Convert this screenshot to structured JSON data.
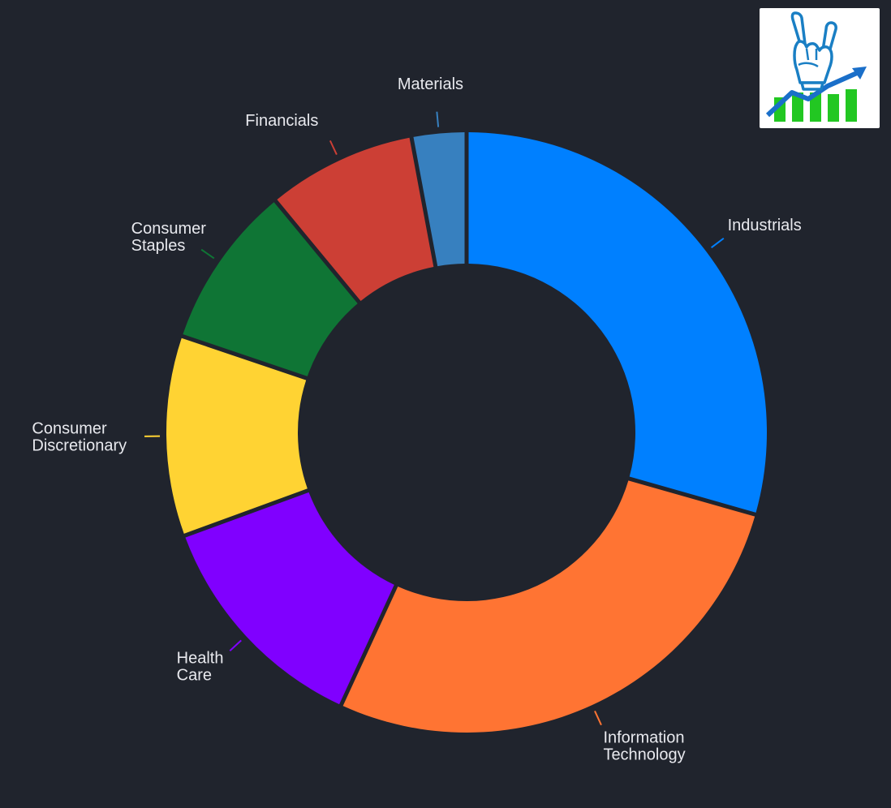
{
  "chart_data": {
    "type": "pie",
    "donut": true,
    "start": "12 o'clock, clockwise",
    "background": "#20242d",
    "label_color": "#e8e9ee",
    "slices": [
      {
        "label": [
          "Industrials"
        ],
        "value": 30.0,
        "color": "#0080ff"
      },
      {
        "label": [
          "Information",
          "Technology"
        ],
        "value": 28.0,
        "color": "#ff7433"
      },
      {
        "label": [
          "Health",
          "Care"
        ],
        "value": 12.8,
        "color": "#8000ff"
      },
      {
        "label": [
          "Consumer",
          "Discretionary"
        ],
        "value": 11.0,
        "color": "#ffd333"
      },
      {
        "label": [
          "Consumer",
          "Staples"
        ],
        "value": 9.0,
        "color": "#0f7535"
      },
      {
        "label": [
          "Financials"
        ],
        "value": 8.2,
        "color": "#cc3f35"
      },
      {
        "label": [
          "Materials"
        ],
        "value": 3.0,
        "color": "#3780bf"
      }
    ]
  },
  "logo": {
    "icon": "rock-hand-growth-chart-icon",
    "colors": {
      "hand": "#1a7fc4",
      "bars": "#22c722",
      "arrow": "#1a6fc9"
    }
  }
}
